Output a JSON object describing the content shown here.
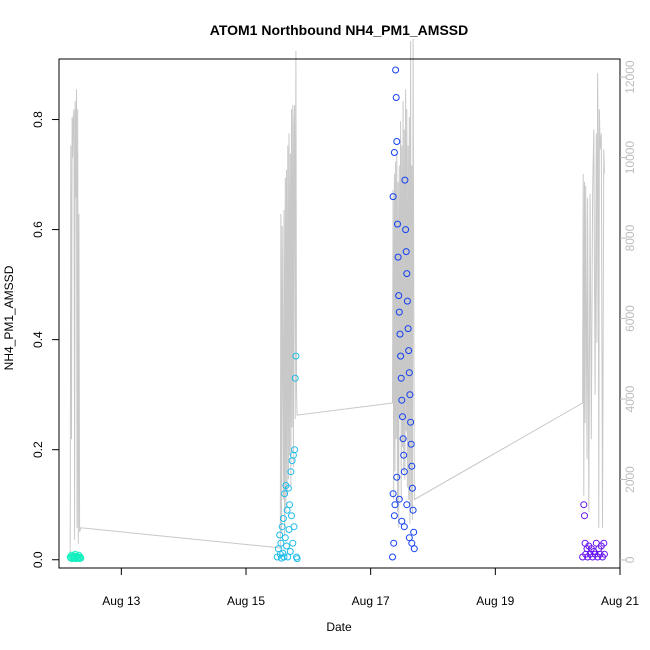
{
  "chart_data": {
    "type": "scatter",
    "title": "ATOM1 Northbound NH4_PM1_AMSSD",
    "xlabel": "Date",
    "ylabel": "NH4_PM1_AMSSD",
    "x_axis": {
      "range_days": [
        12.0,
        21.0
      ],
      "ticks": [
        {
          "value": 13,
          "label": "Aug 13"
        },
        {
          "value": 15,
          "label": "Aug 15"
        },
        {
          "value": 17,
          "label": "Aug 17"
        },
        {
          "value": 19,
          "label": "Aug 19"
        },
        {
          "value": 21,
          "label": "Aug 21"
        }
      ]
    },
    "y_left": {
      "range": [
        -0.015,
        0.91
      ],
      "ticks": [
        {
          "value": 0.0,
          "label": "0.0"
        },
        {
          "value": 0.2,
          "label": "0.2"
        },
        {
          "value": 0.4,
          "label": "0.4"
        },
        {
          "value": 0.6,
          "label": "0.6"
        },
        {
          "value": 0.8,
          "label": "0.8"
        }
      ]
    },
    "y_right": {
      "range": [
        -200,
        12450
      ],
      "color": "#bdbdbd",
      "ticks": [
        {
          "value": 0,
          "label": "0"
        },
        {
          "value": 2000,
          "label": "2000"
        },
        {
          "value": 4000,
          "label": "4000"
        },
        {
          "value": 6000,
          "label": "6000"
        },
        {
          "value": 8000,
          "label": "8000"
        },
        {
          "value": 10000,
          "label": "10000"
        },
        {
          "value": 12000,
          "label": "12000"
        }
      ]
    },
    "line_series": {
      "axis": "right",
      "color": "#c8c8c8",
      "points": [
        [
          12.18,
          100
        ],
        [
          12.19,
          10300
        ],
        [
          12.2,
          3000
        ],
        [
          12.21,
          11000
        ],
        [
          12.22,
          10000
        ],
        [
          12.23,
          11000
        ],
        [
          12.24,
          11200
        ],
        [
          12.25,
          500
        ],
        [
          12.26,
          11400
        ],
        [
          12.27,
          9000
        ],
        [
          12.28,
          11700
        ],
        [
          12.29,
          800
        ],
        [
          12.3,
          11200
        ],
        [
          12.31,
          400
        ],
        [
          12.32,
          8600
        ],
        [
          12.33,
          700
        ],
        [
          12.35,
          800
        ],
        [
          15.55,
          300
        ],
        [
          15.56,
          8600
        ],
        [
          15.57,
          700
        ],
        [
          15.58,
          8300
        ],
        [
          15.6,
          1500
        ],
        [
          15.61,
          8700
        ],
        [
          15.62,
          600
        ],
        [
          15.63,
          9500
        ],
        [
          15.64,
          1200
        ],
        [
          15.65,
          9700
        ],
        [
          15.66,
          1600
        ],
        [
          15.67,
          10300
        ],
        [
          15.68,
          2000
        ],
        [
          15.69,
          10600
        ],
        [
          15.7,
          2600
        ],
        [
          15.71,
          10100
        ],
        [
          15.72,
          1800
        ],
        [
          15.73,
          11200
        ],
        [
          15.74,
          3300
        ],
        [
          15.75,
          11300
        ],
        [
          15.76,
          2300
        ],
        [
          15.77,
          10800
        ],
        [
          15.78,
          11300
        ],
        [
          15.79,
          3500
        ],
        [
          15.8,
          12650
        ],
        [
          15.81,
          4200
        ],
        [
          15.82,
          3600
        ],
        [
          17.35,
          3900
        ],
        [
          17.36,
          9200
        ],
        [
          17.37,
          1500
        ],
        [
          17.38,
          9600
        ],
        [
          17.39,
          2200
        ],
        [
          17.4,
          9900
        ],
        [
          17.41,
          3000
        ],
        [
          17.42,
          10100
        ],
        [
          17.43,
          1200
        ],
        [
          17.44,
          9400
        ],
        [
          17.45,
          800
        ],
        [
          17.46,
          9800
        ],
        [
          17.47,
          3500
        ],
        [
          17.48,
          10900
        ],
        [
          17.49,
          1500
        ],
        [
          17.5,
          10300
        ],
        [
          17.51,
          2800
        ],
        [
          17.52,
          11400
        ],
        [
          17.53,
          2200
        ],
        [
          17.54,
          10700
        ],
        [
          17.55,
          2000
        ],
        [
          17.56,
          11700
        ],
        [
          17.57,
          3200
        ],
        [
          17.58,
          11200
        ],
        [
          17.59,
          1800
        ],
        [
          17.6,
          10300
        ],
        [
          17.61,
          1500
        ],
        [
          17.62,
          11000
        ],
        [
          17.63,
          900
        ],
        [
          17.64,
          12900
        ],
        [
          17.65,
          1300
        ],
        [
          17.66,
          9800
        ],
        [
          17.67,
          1000
        ],
        [
          17.68,
          12950
        ],
        [
          17.7,
          1500
        ],
        [
          20.4,
          3900
        ],
        [
          20.41,
          9600
        ],
        [
          20.42,
          1600
        ],
        [
          20.43,
          9400
        ],
        [
          20.44,
          3400
        ],
        [
          20.45,
          9300
        ],
        [
          20.47,
          2500
        ],
        [
          20.48,
          9000
        ],
        [
          20.5,
          1200
        ],
        [
          20.52,
          9100
        ],
        [
          20.54,
          3000
        ],
        [
          20.56,
          9100
        ],
        [
          20.58,
          10700
        ],
        [
          20.6,
          4100
        ],
        [
          20.62,
          10600
        ],
        [
          20.63,
          5400
        ],
        [
          20.64,
          12100
        ],
        [
          20.65,
          10300
        ],
        [
          20.66,
          800
        ],
        [
          20.67,
          11200
        ],
        [
          20.68,
          10200
        ],
        [
          20.7,
          10600
        ],
        [
          20.72,
          800
        ],
        [
          20.74,
          10200
        ],
        [
          20.75,
          9600
        ]
      ]
    },
    "scatter_series": [
      {
        "color": "#14f0c0",
        "points": [
          [
            12.18,
            0.005
          ],
          [
            12.19,
            0.003
          ],
          [
            12.2,
            0.008
          ],
          [
            12.21,
            0.002
          ],
          [
            12.22,
            0.006
          ],
          [
            12.23,
            0.004
          ],
          [
            12.24,
            0.007
          ],
          [
            12.25,
            0.003
          ],
          [
            12.26,
            0.01
          ],
          [
            12.27,
            0.002
          ],
          [
            12.28,
            0.005
          ],
          [
            12.29,
            0.006
          ],
          [
            12.3,
            0.003
          ],
          [
            12.31,
            0.004
          ],
          [
            12.32,
            0.008
          ],
          [
            12.33,
            0.002
          ],
          [
            12.34,
            0.005
          ],
          [
            12.35,
            0.003
          ]
        ]
      },
      {
        "color": "#1fbce8",
        "points": [
          [
            15.5,
            0.005
          ],
          [
            15.52,
            0.02
          ],
          [
            15.54,
            0.045
          ],
          [
            15.55,
            0.01
          ],
          [
            15.56,
            0.03
          ],
          [
            15.57,
            0.003
          ],
          [
            15.58,
            0.06
          ],
          [
            15.59,
            0.012
          ],
          [
            15.6,
            0.075
          ],
          [
            15.61,
            0.005
          ],
          [
            15.62,
            0.12
          ],
          [
            15.63,
            0.04
          ],
          [
            15.64,
            0.135
          ],
          [
            15.65,
            0.025
          ],
          [
            15.66,
            0.09
          ],
          [
            15.67,
            0.005
          ],
          [
            15.68,
            0.13
          ],
          [
            15.69,
            0.055
          ],
          [
            15.7,
            0.1
          ],
          [
            15.71,
            0.015
          ],
          [
            15.72,
            0.16
          ],
          [
            15.73,
            0.08
          ],
          [
            15.74,
            0.18
          ],
          [
            15.75,
            0.03
          ],
          [
            15.76,
            0.19
          ],
          [
            15.77,
            0.06
          ],
          [
            15.78,
            0.2
          ],
          [
            15.79,
            0.33
          ],
          [
            15.8,
            0.37
          ],
          [
            15.81,
            0.005
          ],
          [
            15.82,
            0.002
          ]
        ]
      },
      {
        "color": "#1440f0",
        "points": [
          [
            17.35,
            0.005
          ],
          [
            17.36,
            0.66
          ],
          [
            17.37,
            0.03
          ],
          [
            17.38,
            0.74
          ],
          [
            17.39,
            0.1
          ],
          [
            17.4,
            0.89
          ],
          [
            17.41,
            0.84
          ],
          [
            17.42,
            0.76
          ],
          [
            17.43,
            0.61
          ],
          [
            17.44,
            0.55
          ],
          [
            17.45,
            0.48
          ],
          [
            17.46,
            0.45
          ],
          [
            17.47,
            0.41
          ],
          [
            17.48,
            0.37
          ],
          [
            17.49,
            0.33
          ],
          [
            17.5,
            0.29
          ],
          [
            17.51,
            0.26
          ],
          [
            17.52,
            0.22
          ],
          [
            17.53,
            0.19
          ],
          [
            17.54,
            0.16
          ],
          [
            17.55,
            0.69
          ],
          [
            17.56,
            0.6
          ],
          [
            17.57,
            0.56
          ],
          [
            17.58,
            0.52
          ],
          [
            17.59,
            0.47
          ],
          [
            17.6,
            0.42
          ],
          [
            17.61,
            0.38
          ],
          [
            17.62,
            0.34
          ],
          [
            17.63,
            0.3
          ],
          [
            17.64,
            0.25
          ],
          [
            17.65,
            0.21
          ],
          [
            17.66,
            0.17
          ],
          [
            17.67,
            0.13
          ],
          [
            17.68,
            0.09
          ],
          [
            17.69,
            0.05
          ],
          [
            17.7,
            0.02
          ],
          [
            17.36,
            0.12
          ],
          [
            17.38,
            0.08
          ],
          [
            17.42,
            0.15
          ],
          [
            17.46,
            0.11
          ],
          [
            17.5,
            0.07
          ],
          [
            17.54,
            0.06
          ],
          [
            17.58,
            0.1
          ],
          [
            17.62,
            0.04
          ],
          [
            17.66,
            0.03
          ]
        ]
      },
      {
        "color": "#6614f0",
        "points": [
          [
            20.4,
            0.005
          ],
          [
            20.42,
            0.1
          ],
          [
            20.43,
            0.08
          ],
          [
            20.44,
            0.03
          ],
          [
            20.45,
            0.01
          ],
          [
            20.47,
            0.02
          ],
          [
            20.48,
            0.005
          ],
          [
            20.5,
            0.025
          ],
          [
            20.52,
            0.01
          ],
          [
            20.54,
            0.02
          ],
          [
            20.56,
            0.005
          ],
          [
            20.58,
            0.015
          ],
          [
            20.6,
            0.01
          ],
          [
            20.62,
            0.03
          ],
          [
            20.64,
            0.005
          ],
          [
            20.66,
            0.02
          ],
          [
            20.68,
            0.01
          ],
          [
            20.7,
            0.025
          ],
          [
            20.72,
            0.005
          ],
          [
            20.74,
            0.03
          ],
          [
            20.75,
            0.01
          ]
        ]
      }
    ]
  }
}
